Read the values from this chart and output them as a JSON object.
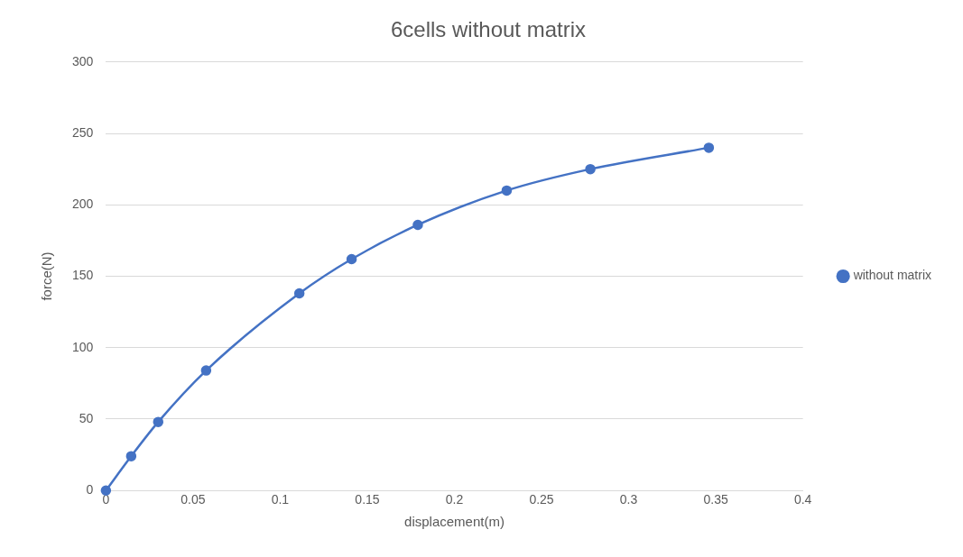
{
  "chart_data": {
    "type": "line",
    "title": "6cells without matrix",
    "xlabel": "displacement(m)",
    "ylabel": "force(N)",
    "x": [
      0,
      0.0145,
      0.03,
      0.0575,
      0.111,
      0.141,
      0.179,
      0.23,
      0.278,
      0.346
    ],
    "series": [
      {
        "name": "without matrix",
        "color": "#4472c4",
        "values": [
          0,
          24,
          48,
          84,
          138,
          162,
          186,
          210,
          225,
          240
        ]
      }
    ],
    "xlim": [
      0,
      0.4
    ],
    "xticks": [
      0,
      0.05,
      0.1,
      0.15,
      0.2,
      0.25,
      0.3,
      0.35,
      0.4
    ],
    "ylim": [
      0,
      300
    ],
    "yticks": [
      0,
      50,
      100,
      150,
      200,
      250,
      300
    ],
    "grid": "y",
    "legend": "right",
    "marker": "circle",
    "line_style": "solid"
  }
}
